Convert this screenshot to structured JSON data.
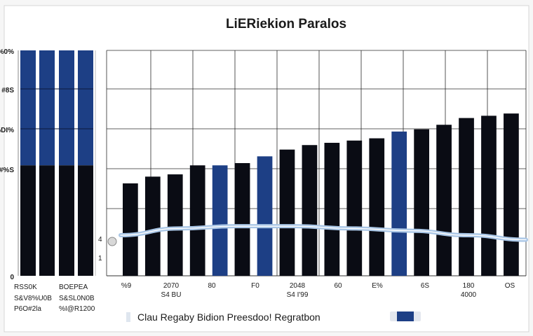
{
  "chart_data": {
    "type": "bar",
    "title": "LiERiekion Paralos",
    "yticks": [
      "0",
      "#%S",
      "%DI%",
      "#8S",
      "%0%"
    ],
    "ylim": [
      0,
      100
    ],
    "left_panel": {
      "values": [
        100,
        100,
        100,
        100
      ],
      "split_at": 49,
      "labels_line1": [
        "RSS0K",
        "BOEPEA"
      ],
      "labels_line2": [
        "S&V8%U0B",
        "S&SL0N0B"
      ],
      "labels_line3": [
        "P6O#2la",
        "%I@R1200"
      ]
    },
    "main": {
      "values": [
        41,
        44,
        45,
        49,
        49,
        50,
        53,
        56,
        58,
        59,
        60,
        61,
        64,
        65,
        67,
        70,
        71,
        72
      ],
      "highlight": [
        4,
        6,
        12
      ],
      "curve": [
        18,
        21,
        22,
        22,
        21,
        20,
        18,
        16
      ]
    },
    "xticks_top": [
      "%9",
      "2070",
      "80",
      "F0",
      "2048",
      "60",
      "E%",
      "6S",
      "180",
      "OS"
    ],
    "xticks_bottom": [
      "",
      "S4 BU",
      "",
      "",
      "S4 I'99",
      "",
      "",
      "",
      "4000",
      ""
    ],
    "legend_text": "Clau Regaby Bidion Preesdoo! Regratbon",
    "colors": {
      "bar_dark": "#0a0c14",
      "bar_blue": "#1d3f85",
      "curve": "#a9c6e6",
      "grid": "#2b2b2b"
    }
  }
}
